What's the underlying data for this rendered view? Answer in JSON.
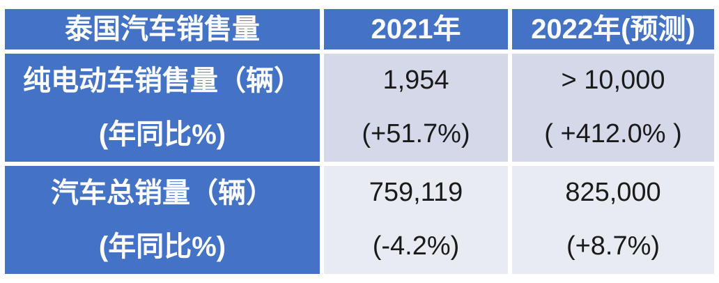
{
  "chart_data": {
    "type": "table",
    "title": "泰国汽车销售量",
    "columns": [
      "泰国汽车销售量",
      "2021年",
      "2022年(预测)"
    ],
    "rows": [
      {
        "metric": "纯电动车销售量（辆）",
        "submetric": "(年同比%)",
        "y2021_value": "1,954",
        "y2021_yoy": "(+51.7%)",
        "y2022_value": "> 10,000",
        "y2022_yoy": "( +412.0% )"
      },
      {
        "metric": "汽车总销量（辆）",
        "submetric": "(年同比%)",
        "y2021_value": "759,119",
        "y2021_yoy": "(-4.2%)",
        "y2022_value": "825,000",
        "y2022_yoy": "(+8.7%)"
      }
    ],
    "numeric": {
      "bev_sales_2021": 1954,
      "bev_sales_2021_yoy_pct": 51.7,
      "bev_sales_2022_forecast_min": 10000,
      "bev_sales_2022_yoy_pct": 412.0,
      "total_sales_2021": 759119,
      "total_sales_2021_yoy_pct": -4.2,
      "total_sales_2022_forecast": 825000,
      "total_sales_2022_yoy_pct": 8.7
    }
  },
  "table": {
    "header": {
      "title": "泰国汽车销售量",
      "y2021": "2021年",
      "y2022": "2022年(预测)"
    },
    "rows": [
      {
        "label1": "纯电动车销售量（辆）",
        "label2": "(年同比%)",
        "v2021": "1,954",
        "yoy2021": "(+51.7%)",
        "v2022": "> 10,000",
        "yoy2022": "( +412.0% )"
      },
      {
        "label1": "汽车总销量（辆）",
        "label2": "(年同比%)",
        "v2021": "759,119",
        "yoy2021": "(-4.2%)",
        "v2022": "825,000",
        "yoy2022": "(+8.7%)"
      }
    ],
    "colors": {
      "accent_blue": "#4472C4",
      "band_row1": "#D4D8E9",
      "band_row2": "#E9EBF2",
      "border_white": "#FFFFFF",
      "text_dark": "#1A1A1A",
      "text_white": "#FFFFFF"
    }
  }
}
